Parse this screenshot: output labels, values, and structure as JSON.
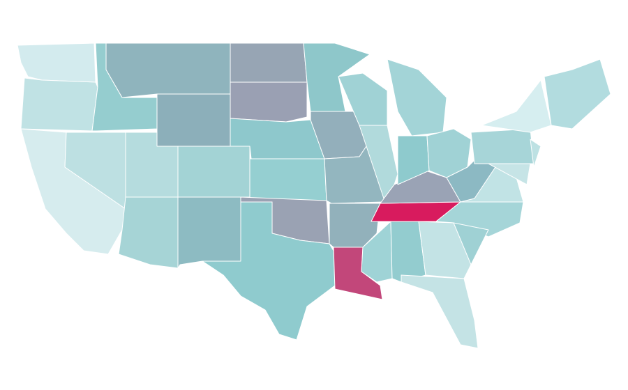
{
  "map": {
    "regions": [
      {
        "color": "#d3ebee"
      },
      {
        "color": "#c0e2e4"
      },
      {
        "color": "#d6ecee"
      },
      {
        "color": "#bde0e2"
      },
      {
        "color": "#95cdcf"
      },
      {
        "color": "#8fb4bd"
      },
      {
        "color": "#8cafba"
      },
      {
        "color": "#b5dcde"
      },
      {
        "color": "#a6d4d6"
      },
      {
        "color": "#a3d3d5"
      },
      {
        "color": "#8dbbc2"
      },
      {
        "color": "#97a5b4"
      },
      {
        "color": "#9aa0b3"
      },
      {
        "color": "#8ec8cc"
      },
      {
        "color": "#95cfd1"
      },
      {
        "color": "#9aa2b3"
      },
      {
        "color": "#8fcbce"
      },
      {
        "color": "#8ec7ca"
      },
      {
        "color": "#93afbb"
      },
      {
        "color": "#93b6bf"
      },
      {
        "color": "#92b1bb"
      },
      {
        "color": "#c2477a"
      },
      {
        "color": "#9fd3d6"
      },
      {
        "color": "#93cccf"
      },
      {
        "color": "#d81b5e"
      },
      {
        "color": "#9aa3b5"
      },
      {
        "color": "#b1dadc"
      },
      {
        "color": "#a0d2d5"
      },
      {
        "color": "#a3d4d7"
      },
      {
        "color": "#8ecacd"
      },
      {
        "color": "#a0d2d5"
      },
      {
        "color": "#8cb9c3"
      },
      {
        "color": "#c1e3e5"
      },
      {
        "color": "#a5d5d8"
      },
      {
        "color": "#9fd1d4"
      },
      {
        "color": "#c3e3e5"
      },
      {
        "color": "#c4e3e5"
      },
      {
        "color": "#a7d5d8"
      },
      {
        "color": "#d6eef0"
      },
      {
        "color": "#b2dcdf"
      },
      {
        "color": "#c6e4e6"
      },
      {
        "color": "#bde1e3"
      }
    ]
  }
}
